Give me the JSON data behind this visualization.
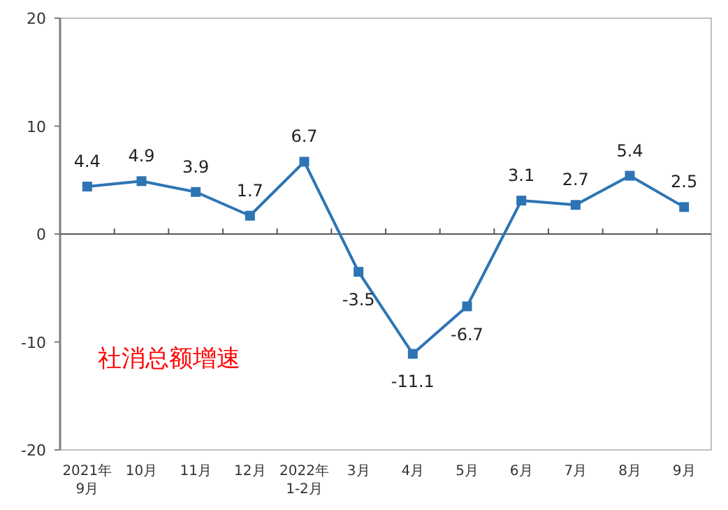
{
  "chart_data": {
    "type": "line",
    "categories": [
      "2021年\n9月",
      "10月",
      "11月",
      "12月",
      "2022年\n1-2月",
      "3月",
      "4月",
      "5月",
      "6月",
      "7月",
      "8月",
      "9月"
    ],
    "series": [
      {
        "color": "#2e74b5",
        "values": [
          4.4,
          4.9,
          3.9,
          1.7,
          6.7,
          -3.5,
          -11.1,
          -6.7,
          3.1,
          2.7,
          5.4,
          2.5
        ]
      }
    ],
    "ylim": [
      -20,
      20
    ],
    "yticks": [
      -20,
      -10,
      0,
      10,
      20
    ],
    "marker": "square",
    "data_labels": true,
    "annotations": [
      "社消总额增速"
    ]
  }
}
